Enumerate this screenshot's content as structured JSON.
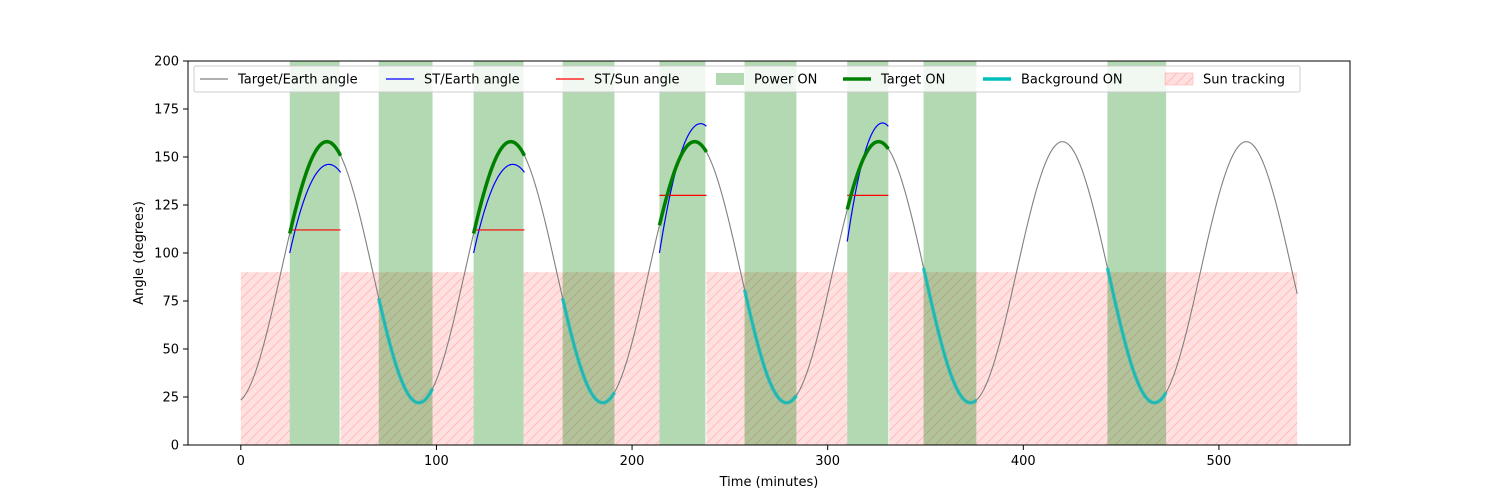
{
  "chart_data": {
    "type": "line",
    "xlabel": "Time (minutes)",
    "ylabel": "Angle (degrees)",
    "xlim": [
      -27,
      567
    ],
    "ylim": [
      0,
      200
    ],
    "xticks": [
      0,
      100,
      200,
      300,
      400,
      500
    ],
    "yticks": [
      0,
      25,
      50,
      75,
      100,
      125,
      150,
      175,
      200
    ],
    "grid": false,
    "legend_position": "top",
    "legend": [
      {
        "label": "Target/Earth angle",
        "kind": "line",
        "color": "#808080"
      },
      {
        "label": "ST/Earth angle",
        "kind": "line",
        "color": "#0000ff"
      },
      {
        "label": "ST/Sun angle",
        "kind": "line",
        "color": "#ff0000"
      },
      {
        "label": "Power ON",
        "kind": "patch",
        "color": "#008000"
      },
      {
        "label": "Target ON",
        "kind": "thick",
        "color": "#008000"
      },
      {
        "label": "Background ON",
        "kind": "thick",
        "color": "#00bfbf"
      },
      {
        "label": "Sun tracking",
        "kind": "hatch",
        "color": "#ff0000"
      }
    ],
    "target_earth_curve": {
      "x_range": [
        0,
        540
      ],
      "period_min": 94,
      "max_deg": 158,
      "min_deg": 22,
      "peak_times": [
        44,
        138,
        232,
        326,
        420,
        514
      ],
      "color": "#808080"
    },
    "power_on_intervals": [
      [
        25,
        50.5
      ],
      [
        70.5,
        98
      ],
      [
        119,
        144.5
      ],
      [
        164.5,
        191
      ],
      [
        214,
        237.5
      ],
      [
        257.5,
        284
      ],
      [
        310,
        331
      ],
      [
        349,
        376
      ],
      [
        443,
        473
      ]
    ],
    "sun_tracking_intervals": [
      [
        0,
        25
      ],
      [
        51,
        119
      ],
      [
        144.5,
        214
      ],
      [
        238,
        310
      ],
      [
        331.5,
        540
      ]
    ],
    "sun_tracking_level": 90,
    "target_on_intervals": [
      [
        25,
        51
      ],
      [
        119,
        145
      ],
      [
        214,
        238
      ],
      [
        310,
        331
      ]
    ],
    "background_on_intervals": [
      [
        70.5,
        98
      ],
      [
        164.5,
        191
      ],
      [
        257.5,
        284
      ],
      [
        349,
        376
      ],
      [
        443,
        473
      ]
    ],
    "st_earth_segments": [
      {
        "x": [
          25,
          51
        ],
        "y": [
          100,
          142
        ],
        "peak_x": 45
      },
      {
        "x": [
          119,
          145
        ],
        "y": [
          100,
          142
        ],
        "peak_x": 139
      },
      {
        "x": [
          214,
          238
        ],
        "y": [
          100,
          166
        ],
        "peak_x": 235
      },
      {
        "x": [
          310,
          331
        ],
        "y": [
          106,
          166
        ],
        "peak_x": 328
      }
    ],
    "st_sun_segments": [
      {
        "x": [
          25,
          51
        ],
        "y": 112
      },
      {
        "x": [
          119,
          145
        ],
        "y": 112
      },
      {
        "x": [
          214,
          238
        ],
        "y": 130
      },
      {
        "x": [
          310,
          331
        ],
        "y": 130
      }
    ]
  }
}
